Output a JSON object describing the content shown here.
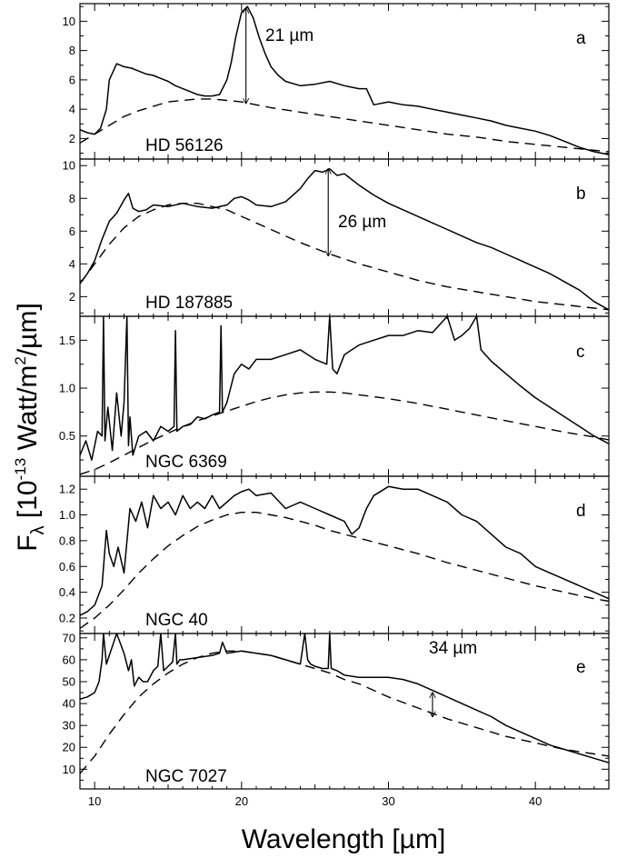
{
  "figure": {
    "xlabel": "Wavelength [µm]",
    "ylabel": "F",
    "ylabel_sub": "λ",
    "ylabel_pre": "[10",
    "ylabel_exp": "-13",
    "ylabel_mid": " Watt/m",
    "ylabel_exp2": "2",
    "ylabel_post": "/µm]"
  },
  "chart_data": [
    {
      "type": "line",
      "panel_letter": "a",
      "object": "HD 56126",
      "xlim": [
        9,
        45
      ],
      "ylim": [
        0.6,
        11.2
      ],
      "xticks": [
        10,
        20,
        30,
        40
      ],
      "yticks": [
        2,
        4,
        6,
        8,
        10
      ],
      "ytick_labels": [
        "2",
        "4",
        "6",
        "8",
        "10"
      ],
      "series": [
        {
          "style": "solid",
          "x": [
            9,
            9.5,
            10,
            10.4,
            10.8,
            11,
            11.5,
            12,
            12.5,
            13,
            13.5,
            14,
            14.5,
            15,
            15.5,
            16,
            16.5,
            17,
            17.5,
            18,
            18.5,
            19,
            19.3,
            19.6,
            20,
            20.4,
            20.8,
            21.2,
            21.6,
            22,
            22.5,
            23,
            24,
            25,
            26,
            27,
            28,
            28.5,
            29,
            30,
            31,
            32,
            33,
            34,
            35,
            36,
            37,
            38,
            39,
            40,
            41,
            42,
            43,
            44,
            45
          ],
          "y": [
            2.6,
            2.4,
            2.3,
            2.7,
            4.0,
            6.0,
            7.1,
            6.9,
            6.8,
            6.6,
            6.4,
            6.3,
            6.1,
            5.9,
            5.6,
            5.4,
            5.2,
            5.0,
            4.9,
            4.9,
            5.0,
            6.0,
            7.2,
            8.9,
            10.6,
            11.0,
            10.2,
            8.9,
            7.8,
            6.9,
            6.3,
            5.9,
            5.6,
            5.7,
            5.9,
            5.6,
            5.4,
            5.4,
            4.3,
            4.5,
            4.3,
            4.2,
            4.0,
            3.8,
            3.6,
            3.4,
            3.2,
            2.9,
            2.7,
            2.5,
            2.2,
            1.8,
            1.4,
            1.1,
            0.9
          ]
        },
        {
          "style": "dashed",
          "x": [
            9,
            10,
            11,
            12,
            13,
            14,
            15,
            16,
            17,
            18,
            19,
            20,
            21,
            22,
            24,
            26,
            28,
            30,
            32,
            34,
            36,
            38,
            40,
            42,
            44,
            45
          ],
          "y": [
            1.7,
            2.3,
            2.9,
            3.5,
            3.9,
            4.2,
            4.5,
            4.6,
            4.7,
            4.7,
            4.6,
            4.5,
            4.3,
            4.1,
            3.8,
            3.5,
            3.2,
            2.9,
            2.6,
            2.3,
            2.1,
            1.8,
            1.6,
            1.4,
            1.2,
            1.1
          ]
        }
      ],
      "annotation": {
        "label": "21 µm",
        "x": 20.3,
        "y_from": 4.4,
        "y_to": 10.9
      }
    },
    {
      "type": "line",
      "panel_letter": "b",
      "object": "HD 187885",
      "xlim": [
        9,
        45
      ],
      "ylim": [
        0.8,
        10.4
      ],
      "xticks": [
        10,
        20,
        30,
        40
      ],
      "yticks": [
        2,
        4,
        6,
        8,
        10
      ],
      "ytick_labels": [
        "2",
        "4",
        "6",
        "8",
        "10"
      ],
      "series": [
        {
          "style": "solid",
          "x": [
            9,
            9.5,
            10,
            10.5,
            11,
            11.5,
            12,
            12.3,
            12.6,
            13,
            13.5,
            14,
            15,
            16,
            17,
            18,
            19,
            19.5,
            20,
            20.5,
            21,
            22,
            23,
            24,
            24.5,
            25,
            25.5,
            26,
            26.5,
            27,
            28,
            29,
            30,
            31,
            32,
            33,
            34,
            35,
            36,
            37,
            38,
            39,
            40,
            41,
            42,
            43,
            44,
            45
          ],
          "y": [
            2.8,
            3.4,
            4.2,
            5.5,
            6.6,
            7.1,
            7.9,
            8.3,
            7.4,
            7.2,
            7.3,
            7.6,
            7.5,
            7.7,
            7.5,
            7.4,
            7.6,
            8.0,
            8.1,
            7.9,
            7.6,
            7.5,
            7.8,
            8.6,
            9.2,
            9.7,
            9.6,
            9.8,
            9.4,
            9.5,
            8.8,
            8.2,
            7.7,
            7.3,
            6.9,
            6.5,
            6.1,
            5.7,
            5.3,
            5.0,
            4.6,
            4.2,
            3.8,
            3.4,
            2.9,
            2.4,
            1.7,
            1.2
          ]
        },
        {
          "style": "dashed",
          "x": [
            9,
            10,
            11,
            12,
            13,
            14,
            15,
            16,
            17,
            18,
            19,
            20,
            21,
            22,
            24,
            26,
            28,
            30,
            32,
            34,
            36,
            38,
            40,
            42,
            44,
            45
          ],
          "y": [
            2.8,
            4.0,
            5.2,
            6.2,
            6.9,
            7.3,
            7.6,
            7.7,
            7.7,
            7.5,
            7.3,
            6.9,
            6.5,
            6.1,
            5.3,
            4.6,
            4.0,
            3.5,
            3.0,
            2.6,
            2.3,
            2.0,
            1.7,
            1.5,
            1.3,
            1.2
          ]
        }
      ],
      "annotation": {
        "label": "26 µm",
        "x": 25.9,
        "y_from": 4.5,
        "y_to": 9.8
      }
    },
    {
      "type": "line",
      "panel_letter": "c",
      "object": "NGC 6369",
      "xlim": [
        9,
        45
      ],
      "ylim": [
        0.08,
        1.75
      ],
      "xticks": [
        10,
        20,
        30,
        40
      ],
      "yticks": [
        0.5,
        1.0,
        1.5
      ],
      "ytick_labels": [
        "0.5",
        "1.0",
        "1.5"
      ],
      "series": [
        {
          "style": "solid",
          "x": [
            9,
            9.4,
            9.8,
            10.2,
            10.5,
            10.6,
            10.7,
            10.9,
            11.2,
            11.5,
            11.8,
            12.0,
            12.2,
            12.3,
            12.4,
            12.6,
            13.0,
            13.5,
            14.0,
            14.5,
            15.0,
            15.4,
            15.5,
            15.6,
            16,
            16.5,
            17,
            17.5,
            18,
            18.5,
            18.6,
            18.7,
            19,
            19.5,
            20,
            20.5,
            21,
            22,
            23,
            24,
            25,
            25.8,
            26,
            26.2,
            26.5,
            27,
            28,
            29,
            30,
            31,
            32,
            33,
            34,
            34.5,
            35,
            35.5,
            36,
            36.3,
            37,
            38,
            39,
            40,
            41,
            42,
            43,
            44,
            45
          ],
          "y": [
            0.3,
            0.45,
            0.25,
            0.55,
            0.5,
            1.75,
            0.45,
            0.8,
            0.35,
            0.95,
            0.5,
            0.85,
            1.75,
            0.4,
            0.7,
            0.3,
            0.5,
            0.55,
            0.45,
            0.6,
            0.55,
            0.6,
            1.6,
            0.55,
            0.6,
            0.62,
            0.7,
            0.68,
            0.72,
            0.75,
            1.65,
            0.75,
            0.85,
            1.15,
            1.25,
            1.2,
            1.3,
            1.3,
            1.35,
            1.4,
            1.3,
            1.25,
            1.75,
            1.2,
            1.15,
            1.35,
            1.45,
            1.5,
            1.55,
            1.55,
            1.6,
            1.58,
            1.75,
            1.5,
            1.55,
            1.62,
            1.75,
            1.4,
            1.28,
            1.15,
            1.02,
            0.9,
            0.8,
            0.7,
            0.6,
            0.5,
            0.42
          ]
        },
        {
          "style": "dashed",
          "x": [
            9,
            10,
            11,
            12,
            13,
            14,
            15,
            16,
            17,
            18,
            19,
            20,
            21,
            22,
            23,
            24,
            25,
            26,
            27,
            28,
            30,
            32,
            34,
            36,
            38,
            40,
            42,
            44,
            45
          ],
          "y": [
            0.1,
            0.15,
            0.22,
            0.3,
            0.38,
            0.46,
            0.53,
            0.6,
            0.66,
            0.71,
            0.76,
            0.81,
            0.86,
            0.9,
            0.93,
            0.95,
            0.96,
            0.96,
            0.95,
            0.93,
            0.89,
            0.84,
            0.78,
            0.72,
            0.66,
            0.6,
            0.54,
            0.49,
            0.46
          ]
        }
      ]
    },
    {
      "type": "line",
      "panel_letter": "d",
      "object": "NGC 40",
      "xlim": [
        9,
        45
      ],
      "ylim": [
        0.08,
        1.3
      ],
      "xticks": [
        10,
        20,
        30,
        40
      ],
      "yticks": [
        0.2,
        0.4,
        0.6,
        0.8,
        1.0,
        1.2
      ],
      "ytick_labels": [
        "0.2",
        "0.4",
        "0.6",
        "0.8",
        "1.0",
        "1.2"
      ],
      "series": [
        {
          "style": "solid",
          "x": [
            9,
            9.5,
            10,
            10.5,
            10.8,
            11,
            11.3,
            11.6,
            12,
            12.4,
            12.8,
            13.2,
            13.6,
            14,
            14.5,
            15,
            15.5,
            16,
            16.5,
            17,
            17.5,
            18,
            18.5,
            19,
            19.5,
            20,
            20.5,
            21,
            22,
            23,
            24,
            25,
            26,
            27,
            27.5,
            28,
            28.5,
            29,
            30,
            31,
            32,
            33,
            34,
            35,
            36,
            37,
            38,
            39,
            40,
            41,
            42,
            43,
            44,
            45
          ],
          "y": [
            0.22,
            0.25,
            0.3,
            0.45,
            0.88,
            0.7,
            0.6,
            0.75,
            0.55,
            1.05,
            0.95,
            1.1,
            0.9,
            1.15,
            1.05,
            1.1,
            1.0,
            1.15,
            1.05,
            1.1,
            1.05,
            1.15,
            1.05,
            1.1,
            1.15,
            1.18,
            1.2,
            1.15,
            1.17,
            1.05,
            1.1,
            1.05,
            1.0,
            0.95,
            0.85,
            0.9,
            1.05,
            1.15,
            1.22,
            1.2,
            1.2,
            1.15,
            1.1,
            1.0,
            0.95,
            0.85,
            0.75,
            0.7,
            0.6,
            0.55,
            0.5,
            0.45,
            0.4,
            0.35
          ]
        },
        {
          "style": "dashed",
          "x": [
            9,
            10,
            11,
            12,
            13,
            14,
            15,
            16,
            17,
            18,
            19,
            20,
            21,
            22,
            23,
            24,
            25,
            26,
            28,
            30,
            32,
            34,
            36,
            38,
            40,
            42,
            44,
            45
          ],
          "y": [
            0.12,
            0.2,
            0.3,
            0.42,
            0.55,
            0.66,
            0.76,
            0.84,
            0.91,
            0.96,
            1.0,
            1.02,
            1.02,
            1.0,
            0.98,
            0.95,
            0.92,
            0.88,
            0.82,
            0.76,
            0.7,
            0.63,
            0.57,
            0.51,
            0.45,
            0.4,
            0.35,
            0.33
          ]
        }
      ]
    },
    {
      "type": "line",
      "panel_letter": "e",
      "object": "NGC 7027",
      "xlim": [
        9,
        45
      ],
      "ylim": [
        1,
        72
      ],
      "xticks": [
        10,
        20,
        30,
        40
      ],
      "yticks": [
        10,
        20,
        30,
        40,
        50,
        60,
        70
      ],
      "ytick_labels": [
        "10",
        "20",
        "30",
        "40",
        "50",
        "60",
        "70"
      ],
      "series": [
        {
          "style": "solid",
          "x": [
            9,
            9.5,
            10,
            10.3,
            10.5,
            10.6,
            10.8,
            11,
            11.5,
            12,
            12.3,
            12.5,
            12.7,
            13,
            13.3,
            13.6,
            14,
            14.3,
            14.5,
            14.7,
            15,
            15.3,
            15.5,
            15.6,
            15.8,
            16,
            17,
            18,
            18.5,
            18.7,
            19,
            20,
            21,
            22,
            23,
            24,
            24.3,
            24.5,
            24.7,
            25,
            25.5,
            25.9,
            26,
            26.1,
            26.5,
            27,
            28,
            29,
            30,
            31,
            32,
            33,
            34,
            35,
            36,
            37,
            38,
            39,
            40,
            41,
            42,
            43,
            44,
            45
          ],
          "y": [
            42,
            43,
            45,
            50,
            60,
            72,
            58,
            62,
            72,
            63,
            55,
            60,
            48,
            52,
            50,
            50,
            55,
            57,
            72,
            55,
            57,
            59,
            72,
            58,
            60,
            60,
            61,
            62,
            63,
            68,
            63,
            64,
            63,
            62,
            60,
            58,
            72,
            60,
            58,
            57,
            56,
            56,
            72,
            56,
            55,
            53,
            52,
            52,
            52,
            51,
            49,
            46,
            43,
            40,
            37,
            34,
            30,
            27,
            24,
            21,
            19,
            17,
            15,
            13
          ]
        },
        {
          "style": "dashed",
          "x": [
            9,
            10,
            11,
            12,
            13,
            14,
            15,
            16,
            17,
            18,
            19,
            20,
            21,
            22,
            23,
            24,
            25,
            26,
            27,
            28,
            30,
            32,
            34,
            36,
            38,
            40,
            42,
            44,
            45
          ],
          "y": [
            8,
            16,
            26,
            35,
            43,
            49,
            54,
            58,
            61,
            63,
            64,
            64,
            63,
            62,
            60,
            58,
            56,
            54,
            51,
            49,
            43,
            38,
            33,
            29,
            25,
            22,
            19,
            17,
            16
          ]
        }
      ],
      "annotation": {
        "label": "34 µm",
        "x": 33.0,
        "y_from": 34,
        "y_to": 45
      }
    }
  ]
}
